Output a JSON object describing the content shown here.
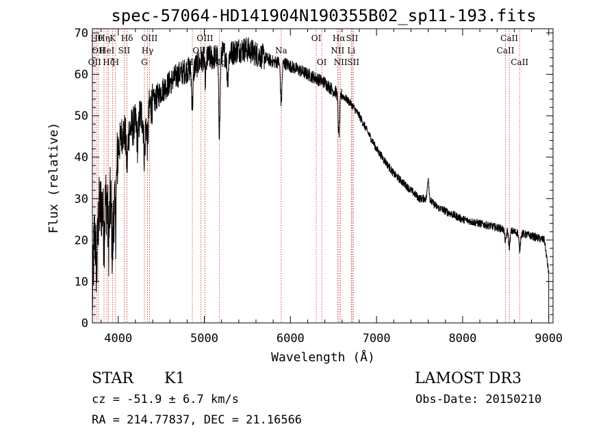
{
  "chart_data": {
    "type": "line",
    "title": "spec-57064-HD141904N190355B02_sp11-193.fits",
    "xlabel": "Wavelength (Å)",
    "ylabel": "Flux (relative)",
    "xlim": [
      3700,
      9050
    ],
    "ylim": [
      0,
      71
    ],
    "xticks": [
      4000,
      5000,
      6000,
      7000,
      8000,
      9000
    ],
    "yticks": [
      0,
      10,
      20,
      30,
      40,
      50,
      60,
      70
    ],
    "series": [
      {
        "name": "spectrum",
        "continuum_x": [
          3700,
          3720,
          3750,
          3800,
          3850,
          3900,
          3950,
          4000,
          4050,
          4100,
          4150,
          4200,
          4250,
          4300,
          4350,
          4400,
          4500,
          4600,
          4700,
          4800,
          4900,
          5000,
          5100,
          5200,
          5300,
          5400,
          5500,
          5600,
          5700,
          5800,
          5900,
          6000,
          6100,
          6200,
          6300,
          6400,
          6500,
          6600,
          6700,
          6800,
          6900,
          7000,
          7100,
          7200,
          7300,
          7400,
          7500,
          7600,
          7700,
          7800,
          7900,
          8000,
          8200,
          8400,
          8600,
          8800,
          8950,
          9000
        ],
        "continuum_y": [
          5,
          20,
          25,
          28,
          30,
          30,
          32,
          42,
          46,
          46,
          47,
          48,
          50,
          50,
          52,
          53,
          56,
          58,
          60,
          61,
          62,
          64,
          64,
          65,
          65,
          66,
          66,
          65,
          64,
          63,
          63,
          62,
          61,
          60,
          59,
          58,
          56,
          55,
          53,
          50,
          46,
          42,
          39,
          36,
          34,
          32,
          30,
          30,
          28,
          27,
          26,
          25,
          24,
          23,
          22,
          21,
          20,
          12
        ],
        "features": [
          {
            "x": 3750,
            "depth": 12
          },
          {
            "x": 3835,
            "depth": 8
          },
          {
            "x": 3889,
            "depth": 10
          },
          {
            "x": 3934,
            "depth": 14
          },
          {
            "x": 3969,
            "depth": 12
          },
          {
            "x": 4102,
            "depth": 8
          },
          {
            "x": 4227,
            "depth": 6
          },
          {
            "x": 4305,
            "depth": 10
          },
          {
            "x": 4340,
            "depth": 8
          },
          {
            "x": 4861,
            "depth": 9
          },
          {
            "x": 5012,
            "depth": 5
          },
          {
            "x": 5175,
            "depth": 18
          },
          {
            "x": 5270,
            "depth": 6
          },
          {
            "x": 5893,
            "depth": 10
          },
          {
            "x": 6563,
            "depth": 10
          },
          {
            "x": 7600,
            "depth": -5
          },
          {
            "x": 8498,
            "depth": 3
          },
          {
            "x": 8542,
            "depth": 4
          },
          {
            "x": 8662,
            "depth": 4
          }
        ]
      }
    ],
    "line_markers": [
      {
        "x": 3726,
        "label": "OII",
        "row": 2
      },
      {
        "x": 3750,
        "label": "Hθ",
        "row": 0
      },
      {
        "x": 3770,
        "label": "OII",
        "row": 1
      },
      {
        "x": 3835,
        "label": "Hη",
        "row": 0
      },
      {
        "x": 3869,
        "label": "HeI",
        "row": 1
      },
      {
        "x": 3889,
        "label": "Hζ",
        "row": 2
      },
      {
        "x": 3934,
        "label": "K",
        "row": 0
      },
      {
        "x": 3969,
        "label": "H",
        "row": 2
      },
      {
        "x": 4069,
        "label": "SII",
        "row": 1
      },
      {
        "x": 4102,
        "label": "Hδ",
        "row": 0
      },
      {
        "x": 4304,
        "label": "G",
        "row": 2
      },
      {
        "x": 4340,
        "label": "Hγ",
        "row": 1
      },
      {
        "x": 4363,
        "label": "OIII",
        "row": 0
      },
      {
        "x": 4861,
        "label": "Hβ",
        "row": 2
      },
      {
        "x": 4959,
        "label": "OIII",
        "row": 1
      },
      {
        "x": 5007,
        "label": "OIII",
        "row": 0
      },
      {
        "x": 5175,
        "label": "Mg",
        "row": 2
      },
      {
        "x": 5893,
        "label": "Na",
        "row": 1
      },
      {
        "x": 6300,
        "label": "OI",
        "row": 0
      },
      {
        "x": 6364,
        "label": "OI",
        "row": 2
      },
      {
        "x": 6548,
        "label": "NII",
        "row": 1
      },
      {
        "x": 6563,
        "label": "Hα",
        "row": 0
      },
      {
        "x": 6583,
        "label": "NII",
        "row": 2
      },
      {
        "x": 6707,
        "label": "Li",
        "row": 1
      },
      {
        "x": 6716,
        "label": "SII",
        "row": 0
      },
      {
        "x": 6731,
        "label": "SII",
        "row": 2
      },
      {
        "x": 8498,
        "label": "CaII",
        "row": 1
      },
      {
        "x": 8542,
        "label": "CaII",
        "row": 0
      },
      {
        "x": 8662,
        "label": "CaII",
        "row": 2
      }
    ]
  },
  "info": {
    "object_class": "STAR",
    "subclass": "K1",
    "survey": "LAMOST DR3",
    "redshift": "cz = -51.9 ± 6.7 km/s",
    "obs_date": "Obs-Date: 20150210",
    "coords": "RA = 214.77837, DEC =  21.16566"
  },
  "colors": {
    "line_marker": "#cc2222",
    "spectrum": "#000000",
    "axes": "#000000"
  }
}
